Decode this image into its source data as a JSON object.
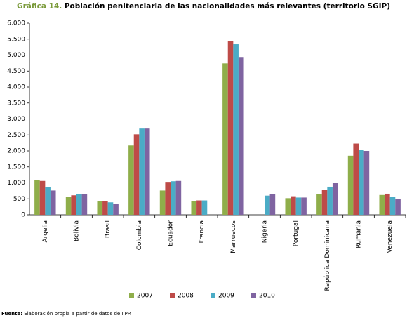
{
  "chart_data": {
    "type": "bar",
    "title_label": "Gráfica 14.",
    "title": "Población penitenciaria de las nacionalidades más relevantes (territorio SGIP)",
    "categories": [
      "Argelia",
      "Bolivia",
      "Brasil",
      "Colombia",
      "Ecuador",
      "Francia",
      "Marruecos",
      "Nigeria",
      "Portugal",
      "República Dominicana",
      "Rumania",
      "Venezuela"
    ],
    "series": [
      {
        "name": "2007",
        "color": "#8fae4a",
        "values": [
          1080,
          550,
          420,
          2170,
          760,
          430,
          4740,
          null,
          520,
          640,
          1850,
          620
        ]
      },
      {
        "name": "2008",
        "color": "#be4b48",
        "values": [
          1060,
          610,
          430,
          2520,
          1030,
          450,
          5450,
          null,
          580,
          780,
          2230,
          660
        ]
      },
      {
        "name": "2009",
        "color": "#4bacc6",
        "values": [
          870,
          640,
          390,
          2700,
          1050,
          450,
          5340,
          600,
          540,
          880,
          2030,
          570
        ]
      },
      {
        "name": "2010",
        "color": "#7f64a1",
        "values": [
          760,
          640,
          330,
          2700,
          1060,
          null,
          4940,
          640,
          540,
          990,
          2000,
          490
        ]
      }
    ],
    "ylim": [
      0,
      6000
    ],
    "yticks": [
      0,
      {
        "value": 500,
        "label": "500"
      },
      {
        "value": 1000,
        "label": "1.000"
      },
      {
        "value": 1500,
        "label": "1.500"
      },
      {
        "value": 2000,
        "label": "2.000"
      },
      {
        "value": 2500,
        "label": "2.500"
      },
      {
        "value": 3000,
        "label": "3.000"
      },
      {
        "value": 3500,
        "label": "3.500"
      },
      {
        "value": 4000,
        "label": "4.000"
      },
      {
        "value": 4500,
        "label": "4.500"
      },
      {
        "value": 5000,
        "label": "5.000"
      },
      {
        "value": 5500,
        "label": "5.500"
      },
      {
        "value": 6000,
        "label": "6.000"
      }
    ],
    "source_label": "Fuente:",
    "source": "Elaboración propia a partir de datos de IIPP."
  }
}
